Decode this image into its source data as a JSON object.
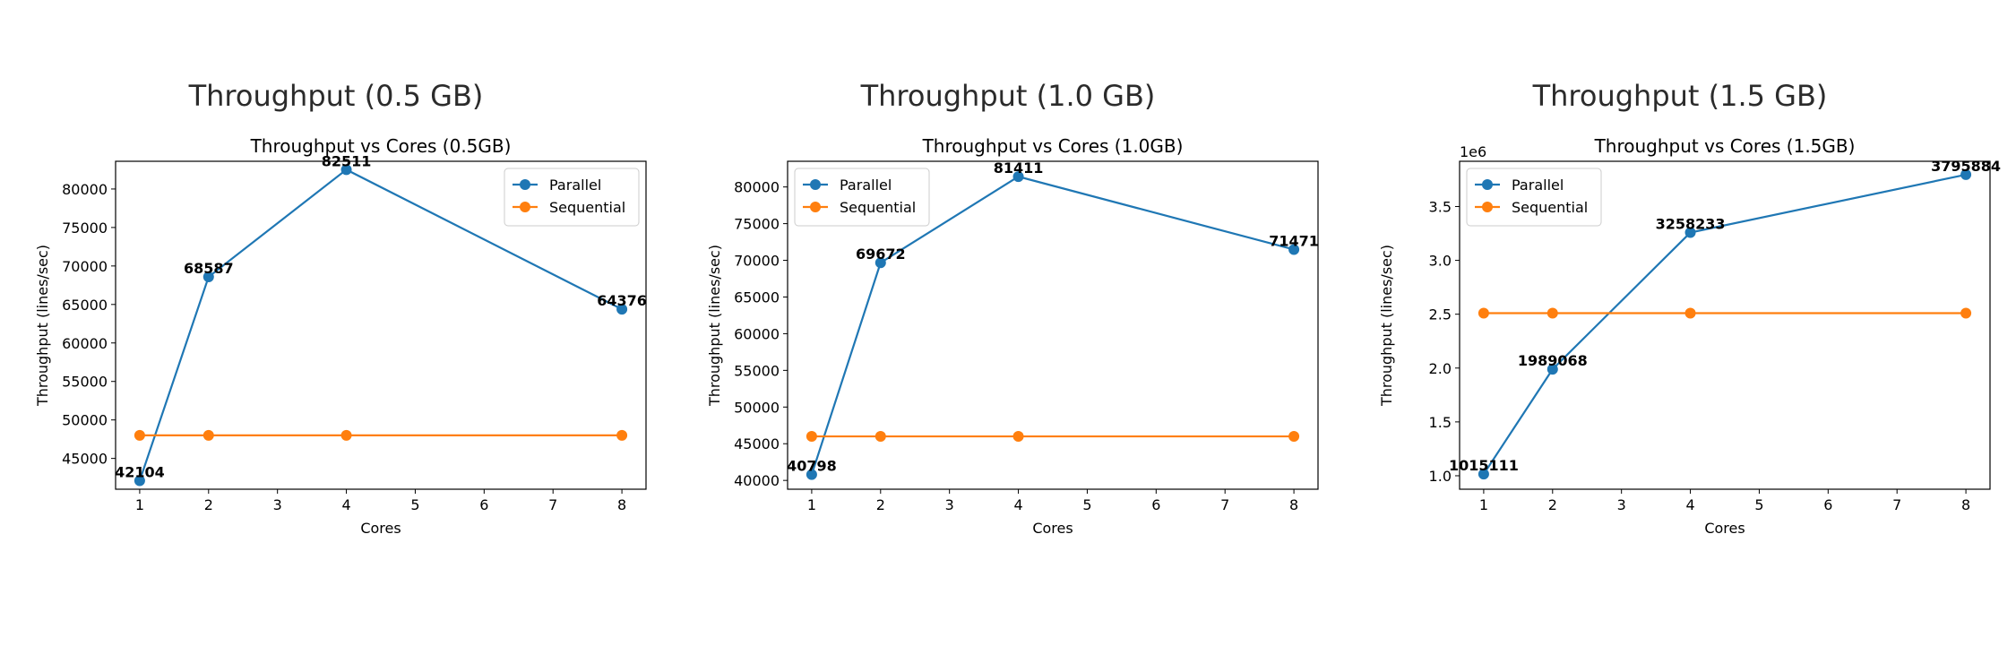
{
  "panels": [
    {
      "title": "Throughput (0.5 GB)"
    },
    {
      "title": "Throughput (1.0 GB)"
    },
    {
      "title": "Throughput (1.5 GB)"
    }
  ],
  "chart_data": [
    {
      "type": "line",
      "title": "Throughput vs Cores (0.5GB)",
      "xlabel": "Cores",
      "ylabel": "Throughput (lines/sec)",
      "x": [
        1,
        2,
        4,
        8
      ],
      "xticks": [
        1,
        2,
        3,
        4,
        5,
        6,
        7,
        8
      ],
      "xlim": [
        0.65,
        8.35
      ],
      "ylim": [
        41000,
        83600
      ],
      "yticks": [
        45000,
        50000,
        55000,
        60000,
        65000,
        70000,
        75000,
        80000
      ],
      "ytick_labels": [
        "45000",
        "50000",
        "55000",
        "60000",
        "65000",
        "70000",
        "75000",
        "80000"
      ],
      "offset_label": "",
      "legend_loc": "upper-right",
      "grid": false,
      "series": [
        {
          "name": "Parallel",
          "color": "#1f77b4",
          "values": [
            42104,
            68587,
            82511,
            64376
          ],
          "labels": [
            "42104",
            "68587",
            "82511",
            "64376"
          ]
        },
        {
          "name": "Sequential",
          "color": "#ff7f0e",
          "values": [
            48000,
            48000,
            48000,
            48000
          ],
          "labels": []
        }
      ]
    },
    {
      "type": "line",
      "title": "Throughput vs Cores (1.0GB)",
      "xlabel": "Cores",
      "ylabel": "Throughput (lines/sec)",
      "x": [
        1,
        2,
        4,
        8
      ],
      "xticks": [
        1,
        2,
        3,
        4,
        5,
        6,
        7,
        8
      ],
      "xlim": [
        0.65,
        8.35
      ],
      "ylim": [
        38800,
        83500
      ],
      "yticks": [
        40000,
        45000,
        50000,
        55000,
        60000,
        65000,
        70000,
        75000,
        80000
      ],
      "ytick_labels": [
        "40000",
        "45000",
        "50000",
        "55000",
        "60000",
        "65000",
        "70000",
        "75000",
        "80000"
      ],
      "offset_label": "",
      "legend_loc": "upper-left",
      "grid": false,
      "series": [
        {
          "name": "Parallel",
          "color": "#1f77b4",
          "values": [
            40798,
            69672,
            81411,
            71471
          ],
          "labels": [
            "40798",
            "69672",
            "81411",
            "71471"
          ]
        },
        {
          "name": "Sequential",
          "color": "#ff7f0e",
          "values": [
            46000,
            46000,
            46000,
            46000
          ],
          "labels": []
        }
      ]
    },
    {
      "type": "line",
      "title": "Throughput vs Cores (1.5GB)",
      "xlabel": "Cores",
      "ylabel": "Throughput (lines/sec)",
      "x": [
        1,
        2,
        4,
        8
      ],
      "xticks": [
        1,
        2,
        3,
        4,
        5,
        6,
        7,
        8
      ],
      "xlim": [
        0.65,
        8.35
      ],
      "ylim": [
        875000,
        3920000
      ],
      "yticks": [
        1000000,
        1500000,
        2000000,
        2500000,
        3000000,
        3500000
      ],
      "ytick_labels": [
        "1.0",
        "1.5",
        "2.0",
        "2.5",
        "3.0",
        "3.5"
      ],
      "offset_label": "1e6",
      "legend_loc": "upper-left",
      "grid": false,
      "series": [
        {
          "name": "Parallel",
          "color": "#1f77b4",
          "values": [
            1015111,
            1989068,
            3258233,
            3795884
          ],
          "labels": [
            "1015111",
            "1989068",
            "3258233",
            "3795884"
          ]
        },
        {
          "name": "Sequential",
          "color": "#ff7f0e",
          "values": [
            2510000,
            2510000,
            2510000,
            2510000
          ],
          "labels": []
        }
      ]
    }
  ]
}
